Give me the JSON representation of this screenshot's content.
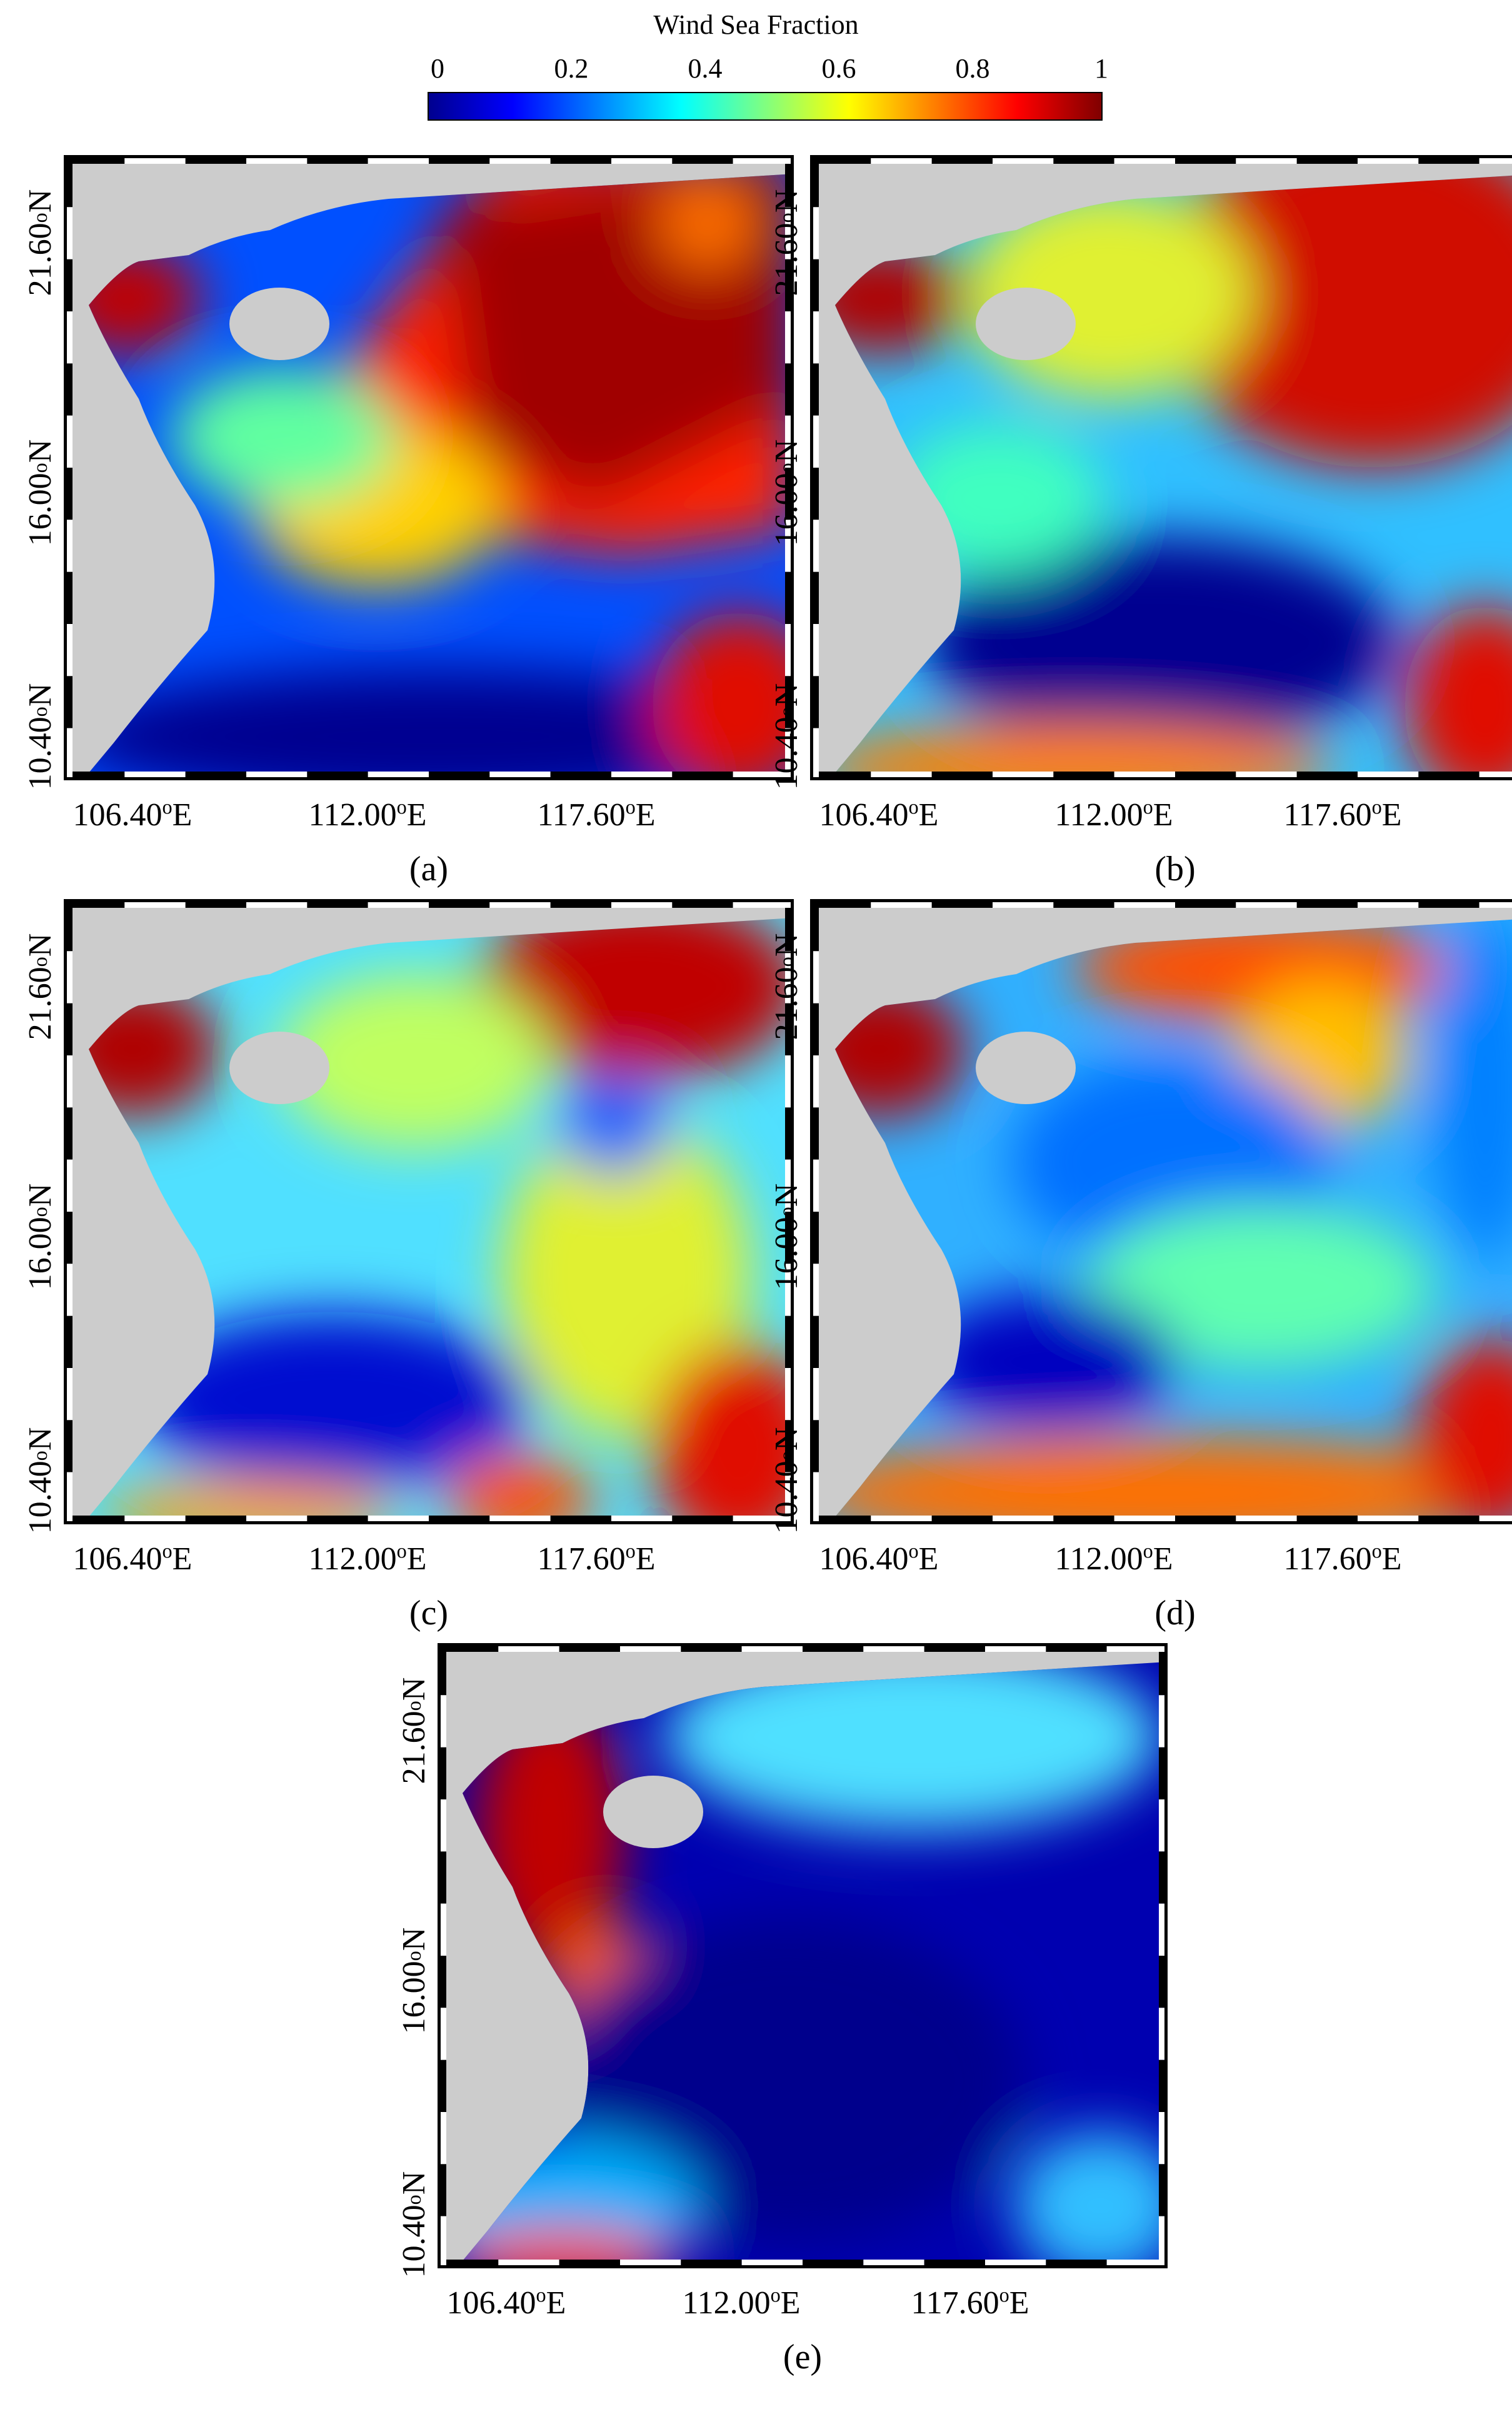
{
  "colorbar": {
    "title": "Wind Sea Fraction",
    "ticks": [
      "0",
      "0.2",
      "0.4",
      "0.6",
      "0.8",
      "1"
    ],
    "colors": [
      "#00008f",
      "#0000ff",
      "#0080ff",
      "#00ffff",
      "#80ff80",
      "#ffff00",
      "#ff8000",
      "#ff0000",
      "#800000"
    ]
  },
  "axes": {
    "y_ticks": [
      {
        "num": "21.60",
        "deg": "o",
        "dir": "N"
      },
      {
        "num": "16.00",
        "deg": "o",
        "dir": "N"
      },
      {
        "num": "10.40",
        "deg": "o",
        "dir": "N"
      }
    ],
    "x_ticks": [
      {
        "num": "106.40",
        "deg": "o",
        "dir": "E"
      },
      {
        "num": "112.00",
        "deg": "o",
        "dir": "E"
      },
      {
        "num": "117.60",
        "deg": "o",
        "dir": "E"
      }
    ]
  },
  "panels": [
    {
      "label": "(a)",
      "land_color": "#cccccc"
    },
    {
      "label": "(b)",
      "land_color": "#cccccc"
    },
    {
      "label": "(c)",
      "land_color": "#cccccc"
    },
    {
      "label": "(d)",
      "land_color": "#cccccc"
    },
    {
      "label": "(e)",
      "land_color": "#cccccc"
    }
  ]
}
